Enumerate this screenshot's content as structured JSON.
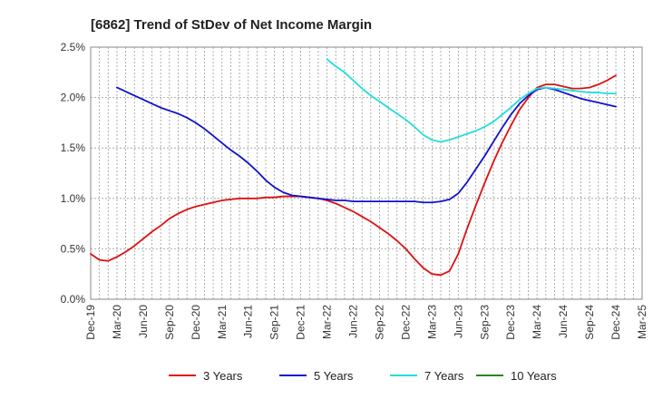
{
  "chart_data": {
    "type": "line",
    "title": "[6862]  Trend of StDev of Net Income Margin",
    "xlabel": "",
    "ylabel": "",
    "x_ticks": [
      "Dec-19",
      "Mar-20",
      "Jun-20",
      "Sep-20",
      "Dec-20",
      "Mar-21",
      "Jun-21",
      "Sep-21",
      "Dec-21",
      "Mar-22",
      "Jun-22",
      "Sep-22",
      "Dec-22",
      "Mar-23",
      "Jun-23",
      "Sep-23",
      "Dec-23",
      "Mar-24",
      "Jun-24",
      "Sep-24",
      "Dec-24",
      "Mar-25"
    ],
    "y_ticks": [
      "0.0%",
      "0.5%",
      "1.0%",
      "1.5%",
      "2.0%",
      "2.5%"
    ],
    "ylim": [
      0,
      2.5
    ],
    "y_unit": "%",
    "grid": true,
    "legend_position": "bottom",
    "series": [
      {
        "name": "3 Years",
        "color": "#dd1111",
        "points": [
          [
            "2019-12",
            0.45
          ],
          [
            "2020-01",
            0.39
          ],
          [
            "2020-02",
            0.38
          ],
          [
            "2020-03",
            0.42
          ],
          [
            "2020-04",
            0.47
          ],
          [
            "2020-05",
            0.53
          ],
          [
            "2020-06",
            0.6
          ],
          [
            "2020-07",
            0.67
          ],
          [
            "2020-08",
            0.73
          ],
          [
            "2020-09",
            0.8
          ],
          [
            "2020-10",
            0.85
          ],
          [
            "2020-11",
            0.89
          ],
          [
            "2020-12",
            0.92
          ],
          [
            "2021-01",
            0.94
          ],
          [
            "2021-02",
            0.96
          ],
          [
            "2021-03",
            0.98
          ],
          [
            "2021-04",
            0.99
          ],
          [
            "2021-05",
            1.0
          ],
          [
            "2021-06",
            1.0
          ],
          [
            "2021-07",
            1.0
          ],
          [
            "2021-08",
            1.01
          ],
          [
            "2021-09",
            1.01
          ],
          [
            "2021-10",
            1.02
          ],
          [
            "2021-11",
            1.02
          ],
          [
            "2021-12",
            1.02
          ],
          [
            "2022-01",
            1.01
          ],
          [
            "2022-02",
            1.0
          ],
          [
            "2022-03",
            0.98
          ],
          [
            "2022-04",
            0.95
          ],
          [
            "2022-05",
            0.91
          ],
          [
            "2022-06",
            0.87
          ],
          [
            "2022-07",
            0.82
          ],
          [
            "2022-08",
            0.77
          ],
          [
            "2022-09",
            0.71
          ],
          [
            "2022-10",
            0.65
          ],
          [
            "2022-11",
            0.58
          ],
          [
            "2022-12",
            0.5
          ],
          [
            "2023-01",
            0.4
          ],
          [
            "2023-02",
            0.31
          ],
          [
            "2023-03",
            0.25
          ],
          [
            "2023-04",
            0.24
          ],
          [
            "2023-05",
            0.28
          ],
          [
            "2023-06",
            0.45
          ],
          [
            "2023-07",
            0.7
          ],
          [
            "2023-08",
            0.93
          ],
          [
            "2023-09",
            1.15
          ],
          [
            "2023-10",
            1.36
          ],
          [
            "2023-11",
            1.55
          ],
          [
            "2023-12",
            1.72
          ],
          [
            "2024-01",
            1.88
          ],
          [
            "2024-02",
            2.0
          ],
          [
            "2024-03",
            2.1
          ],
          [
            "2024-04",
            2.13
          ],
          [
            "2024-05",
            2.13
          ],
          [
            "2024-06",
            2.11
          ],
          [
            "2024-07",
            2.09
          ],
          [
            "2024-08",
            2.09
          ],
          [
            "2024-09",
            2.1
          ],
          [
            "2024-10",
            2.13
          ],
          [
            "2024-11",
            2.17
          ],
          [
            "2024-12",
            2.22
          ]
        ]
      },
      {
        "name": "5 Years",
        "color": "#1111cc",
        "points": [
          [
            "2020-03",
            2.1
          ],
          [
            "2020-04",
            2.06
          ],
          [
            "2020-05",
            2.02
          ],
          [
            "2020-06",
            1.98
          ],
          [
            "2020-07",
            1.94
          ],
          [
            "2020-08",
            1.9
          ],
          [
            "2020-09",
            1.87
          ],
          [
            "2020-10",
            1.84
          ],
          [
            "2020-11",
            1.8
          ],
          [
            "2020-12",
            1.75
          ],
          [
            "2021-01",
            1.69
          ],
          [
            "2021-02",
            1.62
          ],
          [
            "2021-03",
            1.55
          ],
          [
            "2021-04",
            1.48
          ],
          [
            "2021-05",
            1.42
          ],
          [
            "2021-06",
            1.35
          ],
          [
            "2021-07",
            1.27
          ],
          [
            "2021-08",
            1.18
          ],
          [
            "2021-09",
            1.11
          ],
          [
            "2021-10",
            1.06
          ],
          [
            "2021-11",
            1.03
          ],
          [
            "2021-12",
            1.02
          ],
          [
            "2022-01",
            1.01
          ],
          [
            "2022-02",
            1.0
          ],
          [
            "2022-03",
            0.99
          ],
          [
            "2022-04",
            0.98
          ],
          [
            "2022-05",
            0.98
          ],
          [
            "2022-06",
            0.97
          ],
          [
            "2022-07",
            0.97
          ],
          [
            "2022-08",
            0.97
          ],
          [
            "2022-09",
            0.97
          ],
          [
            "2022-10",
            0.97
          ],
          [
            "2022-11",
            0.97
          ],
          [
            "2022-12",
            0.97
          ],
          [
            "2023-01",
            0.97
          ],
          [
            "2023-02",
            0.96
          ],
          [
            "2023-03",
            0.96
          ],
          [
            "2023-04",
            0.97
          ],
          [
            "2023-05",
            0.99
          ],
          [
            "2023-06",
            1.05
          ],
          [
            "2023-07",
            1.16
          ],
          [
            "2023-08",
            1.29
          ],
          [
            "2023-09",
            1.42
          ],
          [
            "2023-10",
            1.56
          ],
          [
            "2023-11",
            1.7
          ],
          [
            "2023-12",
            1.83
          ],
          [
            "2024-01",
            1.94
          ],
          [
            "2024-02",
            2.02
          ],
          [
            "2024-03",
            2.08
          ],
          [
            "2024-04",
            2.1
          ],
          [
            "2024-05",
            2.08
          ],
          [
            "2024-06",
            2.05
          ],
          [
            "2024-07",
            2.02
          ],
          [
            "2024-08",
            1.99
          ],
          [
            "2024-09",
            1.97
          ],
          [
            "2024-10",
            1.95
          ],
          [
            "2024-11",
            1.93
          ],
          [
            "2024-12",
            1.91
          ]
        ]
      },
      {
        "name": "7 Years",
        "color": "#22dddd",
        "points": [
          [
            "2022-03",
            2.38
          ],
          [
            "2022-04",
            2.31
          ],
          [
            "2022-05",
            2.25
          ],
          [
            "2022-06",
            2.17
          ],
          [
            "2022-07",
            2.09
          ],
          [
            "2022-08",
            2.02
          ],
          [
            "2022-09",
            1.96
          ],
          [
            "2022-10",
            1.9
          ],
          [
            "2022-11",
            1.84
          ],
          [
            "2022-12",
            1.78
          ],
          [
            "2023-01",
            1.71
          ],
          [
            "2023-02",
            1.63
          ],
          [
            "2023-03",
            1.58
          ],
          [
            "2023-04",
            1.56
          ],
          [
            "2023-05",
            1.58
          ],
          [
            "2023-06",
            1.61
          ],
          [
            "2023-07",
            1.64
          ],
          [
            "2023-08",
            1.67
          ],
          [
            "2023-09",
            1.71
          ],
          [
            "2023-10",
            1.76
          ],
          [
            "2023-11",
            1.83
          ],
          [
            "2023-12",
            1.9
          ],
          [
            "2024-01",
            1.98
          ],
          [
            "2024-02",
            2.04
          ],
          [
            "2024-03",
            2.09
          ],
          [
            "2024-04",
            2.1
          ],
          [
            "2024-05",
            2.09
          ],
          [
            "2024-06",
            2.08
          ],
          [
            "2024-07",
            2.07
          ],
          [
            "2024-08",
            2.06
          ],
          [
            "2024-09",
            2.05
          ],
          [
            "2024-10",
            2.05
          ],
          [
            "2024-11",
            2.04
          ],
          [
            "2024-12",
            2.04
          ]
        ]
      },
      {
        "name": "10 Years",
        "color": "#228822",
        "points": []
      }
    ]
  }
}
